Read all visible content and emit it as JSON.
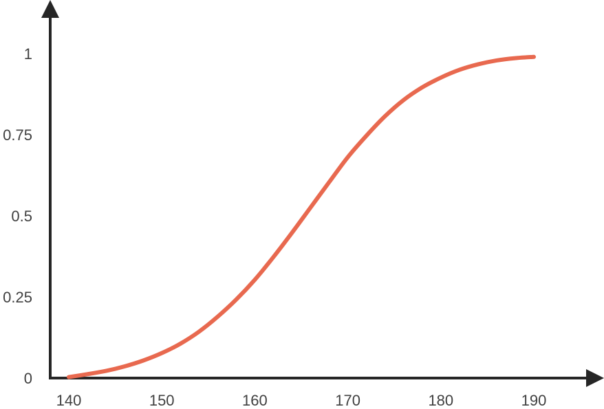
{
  "chart_data": {
    "type": "line",
    "title": "",
    "xlabel": "",
    "ylabel": "",
    "xlim": [
      140,
      190
    ],
    "ylim": [
      0,
      1
    ],
    "x_ticks": [
      140,
      150,
      160,
      170,
      180,
      190
    ],
    "x_tick_labels": [
      "140",
      "150",
      "160",
      "170",
      "180",
      "190"
    ],
    "y_ticks": [
      0,
      0.25,
      0.5,
      0.75,
      1
    ],
    "y_tick_labels": [
      "0",
      "0.25",
      "0.5",
      "0.75",
      "1"
    ],
    "grid": false,
    "legend": "none",
    "series": [
      {
        "color": "#e8694f",
        "x": [
          140,
          142,
          144,
          146,
          148,
          150,
          152,
          154,
          156,
          158,
          160,
          162,
          164,
          166,
          168,
          170,
          172,
          174,
          176,
          178,
          180,
          182,
          184,
          186,
          188,
          190
        ],
        "y": [
          0.003,
          0.012,
          0.022,
          0.036,
          0.054,
          0.077,
          0.106,
          0.143,
          0.189,
          0.242,
          0.303,
          0.373,
          0.448,
          0.526,
          0.604,
          0.681,
          0.747,
          0.807,
          0.857,
          0.896,
          0.926,
          0.95,
          0.967,
          0.979,
          0.986,
          0.99
        ]
      }
    ]
  }
}
